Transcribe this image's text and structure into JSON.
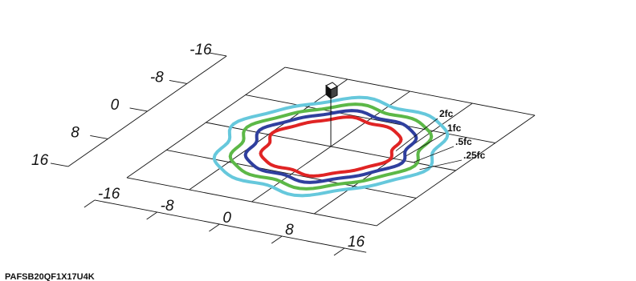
{
  "chart_data": {
    "type": "contour",
    "title": "",
    "footer": "PAFSB20QF1X17U4K",
    "x_ticks": [
      "-16",
      "-8",
      "0",
      "8",
      "16"
    ],
    "y_ticks": [
      "-16",
      "-8",
      "0",
      "8",
      "16"
    ],
    "x_range": [
      -16,
      16
    ],
    "y_range": [
      -16,
      16
    ],
    "grid": true,
    "luminaire": {
      "x": 0,
      "y": 0,
      "symbol": "fixture-cube"
    },
    "contours": [
      {
        "label": "2fc",
        "color": "#e02424",
        "radius": 7.4
      },
      {
        "label": "1fc",
        "color": "#2f3f9e",
        "radius": 9.0
      },
      {
        "label": ".5fc",
        "color": "#5cb847",
        "radius": 10.6
      },
      {
        "label": ".25fc",
        "color": "#66c8dc",
        "radius": 12.3
      }
    ]
  }
}
